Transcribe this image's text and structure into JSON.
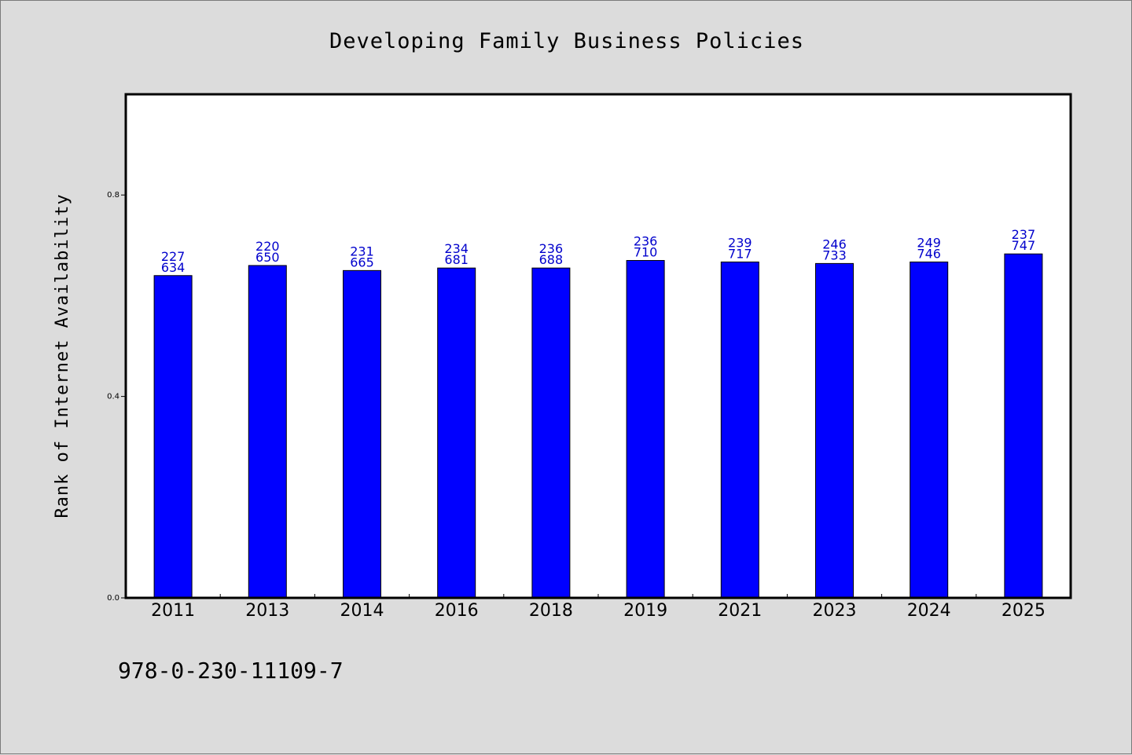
{
  "chart_data": {
    "type": "bar",
    "title": "Developing Family Business Policies",
    "xlabel": "",
    "ylabel": "Rank of Internet Availability",
    "ylim": [
      0,
      1
    ],
    "yticks": [
      0.0,
      0.4,
      0.8
    ],
    "ytick_labels": [
      "0.0",
      "0.4",
      "0.8"
    ],
    "grid": false,
    "categories": [
      "2011",
      "2013",
      "2014",
      "2016",
      "2018",
      "2019",
      "2021",
      "2023",
      "2024",
      "2025"
    ],
    "values": [
      0.64,
      0.66,
      0.65,
      0.655,
      0.655,
      0.67,
      0.667,
      0.664,
      0.667,
      0.683
    ],
    "data_labels": [
      [
        "227",
        "634"
      ],
      [
        "220",
        "650"
      ],
      [
        "231",
        "665"
      ],
      [
        "234",
        "681"
      ],
      [
        "236",
        "688"
      ],
      [
        "236",
        "710"
      ],
      [
        "239",
        "717"
      ],
      [
        "246",
        "733"
      ],
      [
        "249",
        "746"
      ],
      [
        "237",
        "747"
      ]
    ],
    "bar_color": "#0000ff",
    "label_color": "#0000cc"
  },
  "footer": {
    "isbn": "978-0-230-11109-7"
  }
}
